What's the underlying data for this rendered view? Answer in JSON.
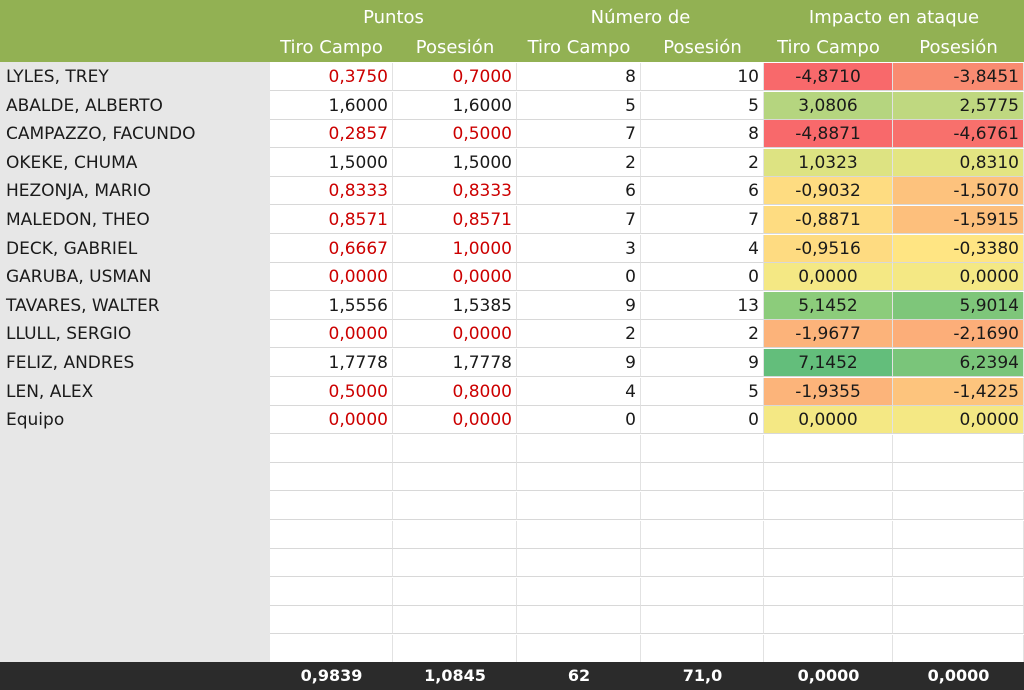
{
  "header": {
    "groups": [
      "Puntos",
      "Número de",
      "Impacto en ataque"
    ],
    "subheaders": [
      "Tiro Campo",
      "Posesión",
      "Tiro Campo",
      "Posesión",
      "Tiro Campo",
      "Posesión"
    ]
  },
  "rows": [
    {
      "name": "LYLES, TREY",
      "pts_tc": "0,3750",
      "pts_pos": "0,7000",
      "num_tc": "8",
      "num_pos": "10",
      "imp_tc": "-4,8710",
      "imp_pos": "-3,8451",
      "low": true,
      "bg_tc": "#f8696b",
      "bg_pos": "#f98b71"
    },
    {
      "name": "ABALDE, ALBERTO",
      "pts_tc": "1,6000",
      "pts_pos": "1,6000",
      "num_tc": "5",
      "num_pos": "5",
      "imp_tc": "3,0806",
      "imp_pos": "2,5775",
      "low": false,
      "bg_tc": "#b5d57f",
      "bg_pos": "#bfd880"
    },
    {
      "name": "CAMPAZZO, FACUNDO",
      "pts_tc": "0,2857",
      "pts_pos": "0,5000",
      "num_tc": "7",
      "num_pos": "8",
      "imp_tc": "-4,8871",
      "imp_pos": "-4,6761",
      "low": true,
      "bg_tc": "#f8696b",
      "bg_pos": "#f8706c"
    },
    {
      "name": "OKEKE, CHUMA",
      "pts_tc": "1,5000",
      "pts_pos": "1,5000",
      "num_tc": "2",
      "num_pos": "2",
      "imp_tc": "1,0323",
      "imp_pos": "0,8310",
      "low": false,
      "bg_tc": "#dde382",
      "bg_pos": "#e3e582"
    },
    {
      "name": "HEZONJA, MARIO",
      "pts_tc": "0,8333",
      "pts_pos": "0,8333",
      "num_tc": "6",
      "num_pos": "6",
      "imp_tc": "-0,9032",
      "imp_pos": "-1,5070",
      "low": true,
      "bg_tc": "#fedc81",
      "bg_pos": "#fdc27d"
    },
    {
      "name": "MALEDON, THEO",
      "pts_tc": "0,8571",
      "pts_pos": "0,8571",
      "num_tc": "7",
      "num_pos": "7",
      "imp_tc": "-0,8871",
      "imp_pos": "-1,5915",
      "low": true,
      "bg_tc": "#fedc81",
      "bg_pos": "#fdbf7c"
    },
    {
      "name": "DECK, GABRIEL",
      "pts_tc": "0,6667",
      "pts_pos": "1,0000",
      "num_tc": "3",
      "num_pos": "4",
      "imp_tc": "-0,9516",
      "imp_pos": "-0,3380",
      "low": true,
      "bg_tc": "#fedb81",
      "bg_pos": "#ffe583"
    },
    {
      "name": "GARUBA, USMAN",
      "pts_tc": "0,0000",
      "pts_pos": "0,0000",
      "num_tc": "0",
      "num_pos": "0",
      "imp_tc": "0,0000",
      "imp_pos": "0,0000",
      "low": true,
      "bg_tc": "#f4e884",
      "bg_pos": "#f4e884"
    },
    {
      "name": "TAVARES, WALTER",
      "pts_tc": "1,5556",
      "pts_pos": "1,5385",
      "num_tc": "9",
      "num_pos": "13",
      "imp_tc": "5,1452",
      "imp_pos": "5,9014",
      "low": false,
      "bg_tc": "#8ccc7b",
      "bg_pos": "#7ec67a"
    },
    {
      "name": "LLULL, SERGIO",
      "pts_tc": "0,0000",
      "pts_pos": "0,0000",
      "num_tc": "2",
      "num_pos": "2",
      "imp_tc": "-1,9677",
      "imp_pos": "-2,1690",
      "low": true,
      "bg_tc": "#fcb37a",
      "bg_pos": "#fcae79"
    },
    {
      "name": "FELIZ, ANDRES",
      "pts_tc": "1,7778",
      "pts_pos": "1,7778",
      "num_tc": "9",
      "num_pos": "9",
      "imp_tc": "7,1452",
      "imp_pos": "6,2394",
      "low": false,
      "bg_tc": "#63be7b",
      "bg_pos": "#7ac57a"
    },
    {
      "name": "LEN, ALEX",
      "pts_tc": "0,5000",
      "pts_pos": "0,8000",
      "num_tc": "4",
      "num_pos": "5",
      "imp_tc": "-1,9355",
      "imp_pos": "-1,4225",
      "low": true,
      "bg_tc": "#fcb47a",
      "bg_pos": "#fdc47d"
    },
    {
      "name": "Equipo",
      "pts_tc": "0,0000",
      "pts_pos": "0,0000",
      "num_tc": "0",
      "num_pos": "0",
      "imp_tc": "0,0000",
      "imp_pos": "0,0000",
      "low": true,
      "bg_tc": "#f4e884",
      "bg_pos": "#f4e884"
    }
  ],
  "empty_rows": 8,
  "footer": [
    "0,9839",
    "1,0845",
    "62",
    "71,0",
    "0,0000",
    "0,0000"
  ],
  "colors": {
    "header_bg": "#92b153",
    "name_col_bg": "#e7e7e7",
    "footer_bg": "#2b2b2b",
    "low_value_text": "#cc0000"
  }
}
